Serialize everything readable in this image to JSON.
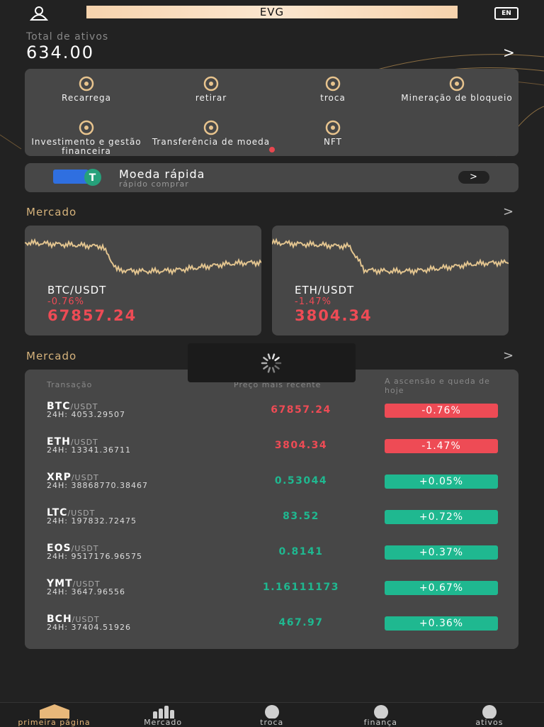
{
  "header": {
    "title": "EVG",
    "language": "EN"
  },
  "assets": {
    "label": "Total de ativos",
    "total": "634.00"
  },
  "actions": [
    "Recarrega",
    "retirar",
    "troca",
    "Mineração de bloqueio",
    "Investimento e gestão financeira",
    "Transferência de moeda",
    "NFT"
  ],
  "quick_buy": {
    "title": "Moeda rápida",
    "subtitle": "rápido comprar"
  },
  "market_cards": {
    "title": "Mercado",
    "cards": [
      {
        "pair": "BTC/USDT",
        "change": "-0.76%",
        "price": "67857.24"
      },
      {
        "pair": "ETH/USDT",
        "change": "-1.47%",
        "price": "3804.34"
      }
    ]
  },
  "market_table": {
    "title": "Mercado",
    "columns": [
      "Transação",
      "Preço mais recente",
      "A ascensão e queda de hoje"
    ],
    "rows": [
      {
        "symbol": "BTC",
        "quote": "/USDT",
        "volume": "24H: 4053.29507",
        "price": "67857.24",
        "change": "-0.76%"
      },
      {
        "symbol": "ETH",
        "quote": "/USDT",
        "volume": "24H: 13341.36711",
        "price": "3804.34",
        "change": "-1.47%"
      },
      {
        "symbol": "XRP",
        "quote": "/USDT",
        "volume": "24H: 38868770.38467",
        "price": "0.53044",
        "change": "+0.05%"
      },
      {
        "symbol": "LTC",
        "quote": "/USDT",
        "volume": "24H: 197832.72475",
        "price": "83.52",
        "change": "+0.72%"
      },
      {
        "symbol": "EOS",
        "quote": "/USDT",
        "volume": "24H: 9517176.96575",
        "price": "0.8141",
        "change": "+0.37%"
      },
      {
        "symbol": "YMT",
        "quote": "/USDT",
        "volume": "24H: 3647.96556",
        "price": "1.16111173",
        "change": "+0.67%"
      },
      {
        "symbol": "BCH",
        "quote": "/USDT",
        "volume": "24H: 37404.51926",
        "price": "467.97",
        "change": "+0.36%"
      }
    ]
  },
  "nav": [
    "primeira página",
    "Mercado",
    "troca",
    "finança",
    "ativos"
  ]
}
